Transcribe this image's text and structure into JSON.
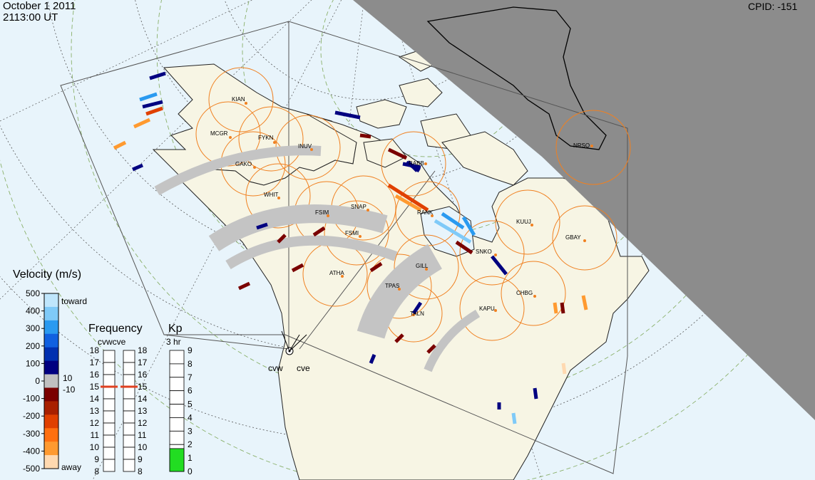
{
  "header": {
    "date": "October  1 2011",
    "time": "2113:00 UT",
    "cpid": "CPID:  -151"
  },
  "velocity_scale": {
    "title": "Velocity (m/s)",
    "ticks": [
      "500",
      "400",
      "300",
      "200",
      "100",
      "0",
      "-100",
      "-200",
      "-300",
      "-400",
      "-500"
    ],
    "toward_label": "toward",
    "away_label": "away",
    "threshold_pos": "10",
    "threshold_neg": "-10",
    "colors": [
      "#ffd9b0",
      "#ff9a30",
      "#ff7010",
      "#e04000",
      "#a82000",
      "#7a0000",
      "#c0c0c0",
      "#000080",
      "#0030b0",
      "#1060e0",
      "#2a9af0",
      "#7fcaf8",
      "#bfe6fc"
    ]
  },
  "frequency_panel": {
    "title": "Frequency",
    "subtitle": "cvwcve",
    "ticks": [
      "18",
      "17",
      "16",
      "15",
      "14",
      "13",
      "12",
      "11",
      "10",
      "9",
      "8"
    ],
    "cvw_mhz": 15,
    "cve_mhz": 15
  },
  "kp_panel": {
    "title": "Kp",
    "subtitle": "3 hr",
    "ticks": [
      "9",
      "8",
      "7",
      "6",
      "5",
      "4",
      "3",
      "2",
      "1",
      "0"
    ],
    "kp_value": 1.7
  },
  "radars": {
    "west": "cvw",
    "east": "cve"
  },
  "stations": [
    {
      "id": "station-kian",
      "label": "KIAN"
    },
    {
      "id": "station-mcgr",
      "label": "MCGR"
    },
    {
      "id": "station-fykn",
      "label": "FYKN"
    },
    {
      "id": "station-inuv",
      "label": "INUV"
    },
    {
      "id": "station-gako",
      "label": "GAKO"
    },
    {
      "id": "station-whit",
      "label": "WHIT"
    },
    {
      "id": "station-fsim",
      "label": "FSIM"
    },
    {
      "id": "station-snap",
      "label": "SNAP"
    },
    {
      "id": "station-fsmi",
      "label": "FSMI"
    },
    {
      "id": "station-rank",
      "label": "RANK"
    },
    {
      "id": "station-kuuj",
      "label": "KUUJ"
    },
    {
      "id": "station-gbay",
      "label": "GBAY"
    },
    {
      "id": "station-snko",
      "label": "SNKO"
    },
    {
      "id": "station-gill",
      "label": "GILL"
    },
    {
      "id": "station-atha",
      "label": "ATHA"
    },
    {
      "id": "station-tpas",
      "label": "TPAS"
    },
    {
      "id": "station-chbg",
      "label": "CHBG"
    },
    {
      "id": "station-kapu",
      "label": "KAPU"
    },
    {
      "id": "station-rabb",
      "label": "RABB"
    },
    {
      "id": "station-nrsq",
      "label": "NRSQ"
    },
    {
      "id": "station-taln",
      "label": "TALN"
    }
  ]
}
